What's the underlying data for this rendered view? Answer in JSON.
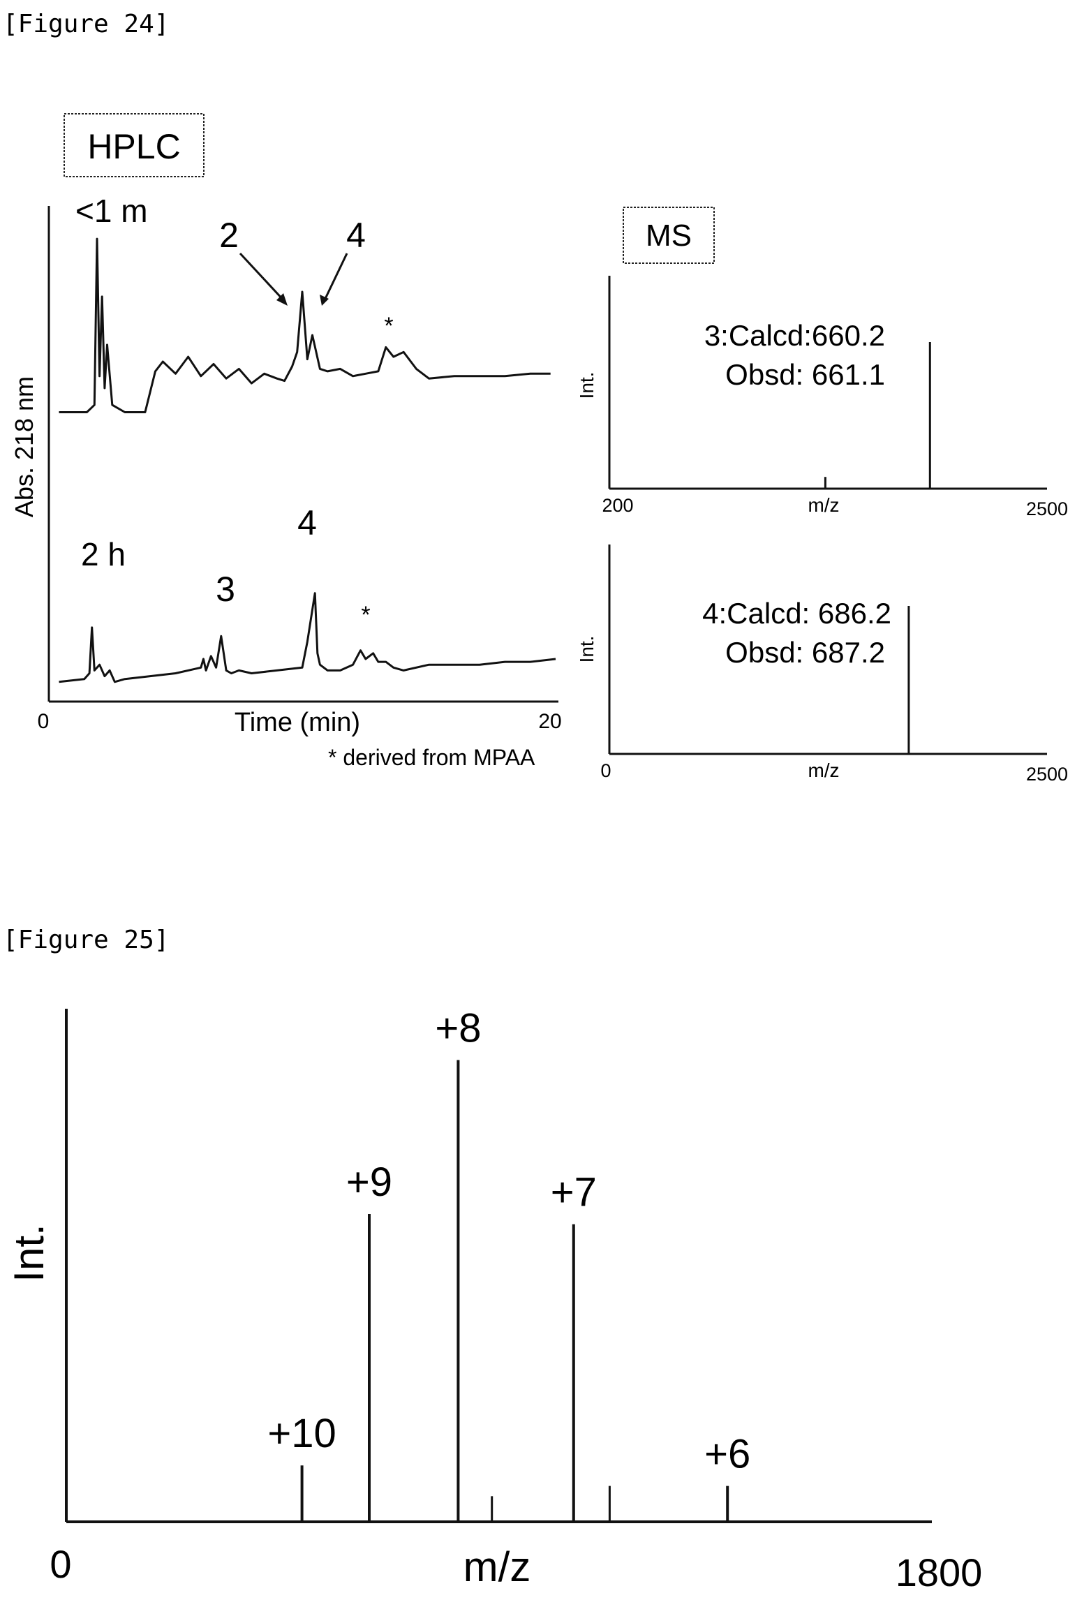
{
  "figures": [
    {
      "caption": "[Figure 24]"
    },
    {
      "caption": "[Figure 25]"
    }
  ],
  "chart_data": [
    {
      "figure": "[Figure 24]",
      "panel": "HPLC",
      "type": "line",
      "title": "HPLC",
      "xlabel": "Time (min)",
      "ylabel": "Abs. 218 nm",
      "xlim": [
        0,
        20
      ],
      "x_ticks": [
        "0",
        "20"
      ],
      "footnote": "* derived from MPAA",
      "series": [
        {
          "name": "<1 m",
          "x": [
            0.4,
            1.5,
            1.8,
            1.9,
            2.0,
            2.1,
            2.2,
            2.3,
            2.5,
            3.0,
            3.8,
            4.2,
            4.5,
            5.0,
            5.5,
            6.0,
            6.5,
            7.0,
            7.5,
            8.0,
            8.5,
            9.0,
            9.3,
            9.6,
            9.8,
            10.0,
            10.2,
            10.4,
            10.7,
            11.0,
            11.5,
            12.0,
            12.5,
            13.0,
            13.3,
            13.6,
            14.0,
            14.5,
            15.0,
            16.0,
            17.0,
            18.0,
            19.0,
            19.8
          ],
          "y": [
            1.0,
            1.0,
            1.3,
            8.2,
            2.5,
            5.8,
            2.0,
            3.8,
            1.3,
            1.0,
            1.0,
            2.7,
            3.1,
            2.6,
            3.3,
            2.5,
            3.0,
            2.4,
            2.8,
            2.2,
            2.6,
            2.4,
            2.3,
            2.9,
            3.5,
            6.0,
            3.2,
            4.2,
            2.8,
            2.7,
            2.8,
            2.5,
            2.6,
            2.7,
            3.7,
            3.3,
            3.5,
            2.8,
            2.4,
            2.5,
            2.5,
            2.5,
            2.6,
            2.6
          ]
        },
        {
          "name": "2 h",
          "x": [
            0.4,
            1.4,
            1.6,
            1.7,
            1.8,
            2.0,
            2.2,
            2.4,
            2.6,
            3.0,
            4.0,
            5.0,
            6.0,
            6.1,
            6.2,
            6.4,
            6.6,
            6.8,
            7.0,
            7.2,
            7.5,
            8.0,
            9.0,
            10.0,
            10.2,
            10.5,
            10.6,
            10.7,
            11.0,
            11.5,
            12.0,
            12.3,
            12.5,
            12.8,
            13.0,
            13.3,
            13.6,
            14.0,
            15.0,
            16.0,
            17.0,
            18.0,
            19.0,
            20.0
          ],
          "y": [
            0.2,
            0.3,
            0.5,
            2.1,
            0.6,
            0.8,
            0.4,
            0.6,
            0.2,
            0.3,
            0.4,
            0.5,
            0.7,
            1.0,
            0.6,
            1.1,
            0.7,
            1.8,
            0.6,
            0.5,
            0.6,
            0.5,
            0.6,
            0.7,
            1.6,
            3.3,
            1.2,
            0.8,
            0.6,
            0.6,
            0.8,
            1.3,
            1.0,
            1.2,
            0.9,
            0.9,
            0.7,
            0.6,
            0.8,
            0.8,
            0.8,
            0.9,
            0.9,
            1.0
          ]
        }
      ],
      "annotations": [
        "<1 m",
        "2",
        "4",
        "*",
        "2 h",
        "3",
        "4",
        "*"
      ]
    },
    {
      "figure": "[Figure 24]",
      "panel": "MS",
      "type": "bar",
      "title": "MS",
      "xlabel": "m/z",
      "ylabel": "Int.",
      "xlim": [
        200,
        2500
      ],
      "x_ticks": [
        "200",
        "2500"
      ],
      "x": [
        1335,
        1885
      ],
      "values": [
        0.08,
        1.0
      ],
      "annotations": [
        "3:Calcd:660.2",
        "Obsd: 661.1"
      ]
    },
    {
      "figure": "[Figure 24]",
      "panel": "MS",
      "type": "bar",
      "title": "",
      "xlabel": "m/z",
      "ylabel": "Int.",
      "xlim": [
        0,
        2500
      ],
      "x_ticks": [
        "0",
        "2500"
      ],
      "x": [
        1710
      ],
      "values": [
        1.0
      ],
      "annotations": [
        "4:Calcd: 686.2",
        "Obsd: 687.2"
      ]
    },
    {
      "figure": "[Figure 25]",
      "type": "bar",
      "title": "",
      "xlabel": "m/z",
      "ylabel": "Int.",
      "xlim": [
        0,
        1800
      ],
      "x_ticks": [
        "0",
        "1800"
      ],
      "categories": [
        "+10",
        "+9",
        "+8",
        "+7",
        "+6"
      ],
      "x": [
        490,
        630,
        815,
        1055,
        1375
      ],
      "values": [
        0.11,
        0.6,
        0.9,
        0.58,
        0.07
      ],
      "minor_peaks": {
        "x": [
          885,
          1130
        ],
        "values": [
          0.05,
          0.07
        ]
      }
    }
  ]
}
